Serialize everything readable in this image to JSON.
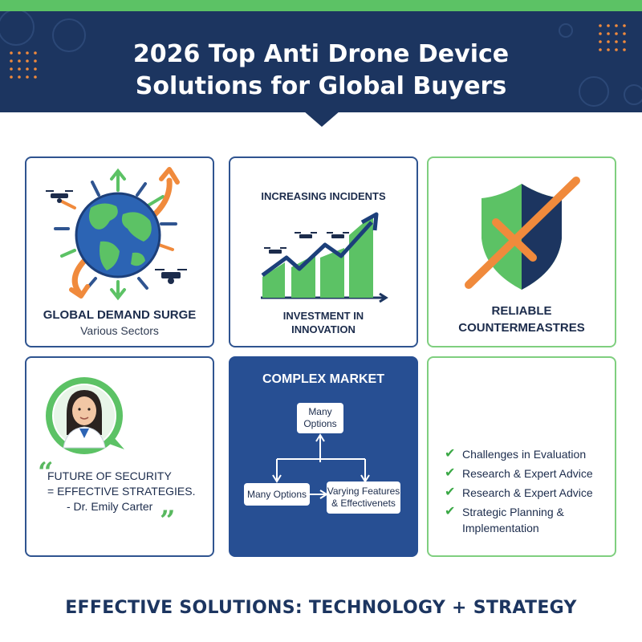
{
  "header": {
    "title_line1": "2026 Top Anti Drone Device",
    "title_line2": "Solutions for Global Buyers"
  },
  "colors": {
    "navy": "#1c3560",
    "green": "#5cc265",
    "orange": "#f08a3c",
    "card_blue": "#274f93"
  },
  "cards": {
    "global_demand": {
      "title": "GLOBAL DEMAND SURGE",
      "subtitle": "Various Sectors",
      "icon": "globe-with-drones-icon"
    },
    "incidents": {
      "title": "INCREASING INCIDENTS",
      "caption_line1": "INVESTMENT IN",
      "caption_line2": "INNOVATION",
      "icon": "rising-bar-chart-icon"
    },
    "countermeasures": {
      "title_line1": "RELIABLE",
      "title_line2": "COUNTERMEASTRES",
      "icon": "shield-cross-icon"
    },
    "quote": {
      "open_mark": "“",
      "close_mark": "”",
      "line1": "FUTURE OF SECURITY",
      "line2": "= EFFECTIVE STRATEGIES.",
      "line3": "- Dr. Emily Carter",
      "icon": "expert-avatar-icon"
    },
    "complex_market": {
      "title": "COMPLEX MARKET",
      "top_node_line1": "Many",
      "top_node_line2": "Options",
      "left_node": "Many Options",
      "right_node_line1": "Varying Features",
      "right_node_line2": "& Effectivenets"
    },
    "checklist": {
      "items": [
        "Challenges in Evaluation",
        "Research & Expert Advice",
        "Research & Expert Advice",
        "Strategic Planning & Implementation"
      ],
      "check_symbol": "✔"
    }
  },
  "footer": {
    "text": "EFFECTIVE SOLUTIONS: TECHNOLOGY + STRATEGY"
  }
}
